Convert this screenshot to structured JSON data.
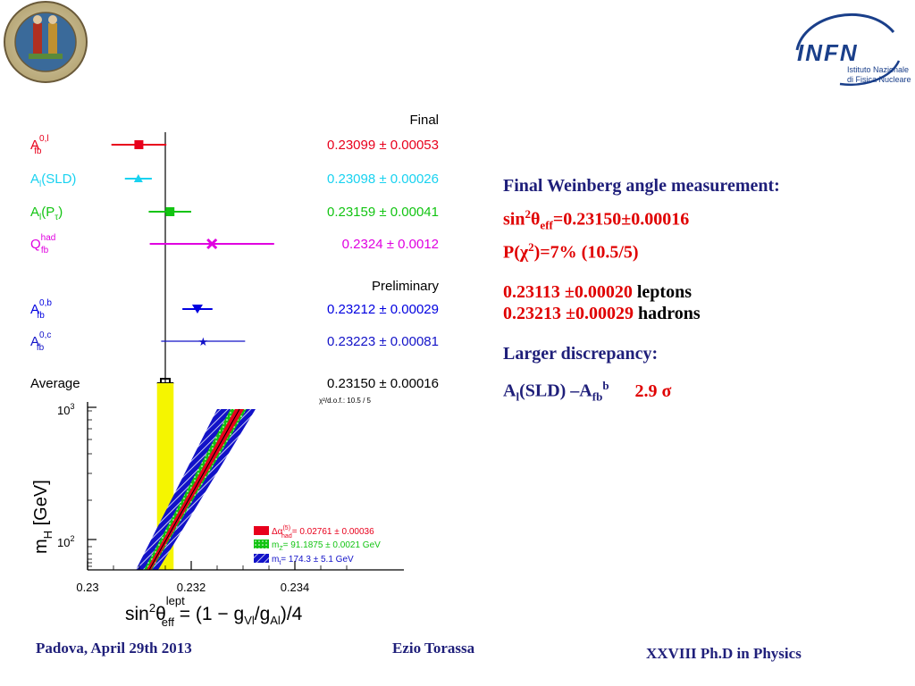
{
  "logos": {
    "univ_logo_icon": "university-seal",
    "infn": {
      "big": "INFN",
      "line1": "Istituto Nazionale",
      "line2": "di Fisica Nucleare"
    }
  },
  "plot": {
    "section_final": "Final",
    "section_preliminary": "Preliminary",
    "rows": [
      {
        "base": "A",
        "sup": "0,l",
        "sub": "fb",
        "tail": "",
        "value": "0.23099 ± 0.00053",
        "color": "#e8001c",
        "center": 0.23099,
        "err": 0.00053
      },
      {
        "base": "A",
        "sup": "",
        "sub": "l",
        "tail": "(SLD)",
        "value": "0.23098 ± 0.00026",
        "color": "#19d2f0",
        "center": 0.23098,
        "err": 0.00026
      },
      {
        "base": "A",
        "sup": "",
        "sub": "l",
        "tail": "(P",
        "tail_sub": "τ",
        "tail_end": ")",
        "value": "0.23159 ± 0.00041",
        "color": "#12c412",
        "center": 0.23159,
        "err": 0.00041
      },
      {
        "base": "Q",
        "sup": "had",
        "sub": "fb",
        "tail": "",
        "value": "0.2324 ± 0.0012",
        "color": "#e000e0",
        "center": 0.2324,
        "err": 0.0012
      },
      {
        "base": "A",
        "sup": "0,b",
        "sub": "fb",
        "tail": "",
        "value": "0.23212 ± 0.00029",
        "color": "#0000e0",
        "center": 0.23212,
        "err": 0.00029
      },
      {
        "base": "A",
        "sup": "0,c",
        "sub": "fb",
        "tail": "",
        "value": "0.23223 ± 0.00081",
        "color": "#1212c8",
        "center": 0.23223,
        "err": 0.00081
      }
    ],
    "average": {
      "label": "Average",
      "value": "0.23150 ± 0.00016",
      "center": 0.2315,
      "err": 0.00016
    },
    "chi2": "χ²/d.o.f.: 10.5 / 5",
    "y_axis": "m",
    "y_axis_sub": "H",
    "y_axis_unit": "[GeV]",
    "y_tick_hi": "10",
    "y_tick_hi_exp": "3",
    "y_tick_lo": "10",
    "y_tick_lo_exp": "2",
    "x_ticks": [
      "0.23",
      "0.232",
      "0.234"
    ],
    "x_title_parts": {
      "a": "sin",
      "sup2": "2",
      "theta": "θ",
      "sup_lept": "lept",
      "sub_eff": "eff",
      "rest": " = (1 − g",
      "sub_vl": "Vl",
      "slash": "/g",
      "sub_al": "Al",
      "end": ")/4"
    },
    "legend": [
      {
        "text_a": "Δα",
        "sup": "(5)",
        "sub": "had",
        "text_b": "= 0.02761 ± 0.00036",
        "color": "#e8001c"
      },
      {
        "text_a": "m",
        "sup": "",
        "sub": "Z",
        "text_b": "= 91.1875 ± 0.0021 GeV",
        "color": "#12c412"
      },
      {
        "text_a": "m",
        "sup": "",
        "sub": "t",
        "text_b": "= 174.3 ± 5.1 GeV",
        "color": "#1212c8"
      }
    ]
  },
  "right_text": {
    "heading": "Final Weinberg angle measurement:",
    "sin_line": {
      "a": "sin",
      "sup": "2",
      "b": "θ",
      "sub": "eff",
      "c": "=0.23150±0.00016"
    },
    "p_line": {
      "a": "P(χ",
      "sup": "2",
      "c": ")=7% (10.5/5)"
    },
    "leptons_val": "0.23113 ±0.00020",
    "leptons_word": "leptons",
    "hadrons_val": "0.23213 ±0.00029",
    "hadrons_word": "hadrons",
    "discrepancy": "Larger discrepancy:",
    "disc_line": {
      "a": "A",
      "sub1": "l",
      "b": "(SLD) –A",
      "sub2": "fb",
      "sup2": "b",
      "val": "2.9 σ"
    }
  },
  "footer": {
    "left": "Padova, April 29th 2013",
    "middle": "Ezio Torassa",
    "right": "XXVIII  Ph.D in Physics"
  }
}
